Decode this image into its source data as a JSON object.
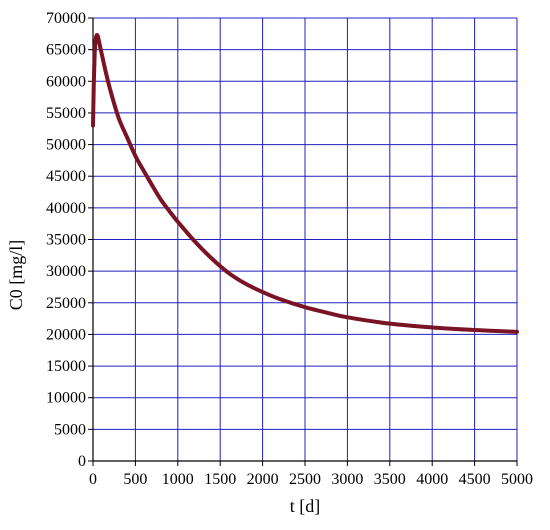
{
  "chart_data": {
    "type": "line",
    "title": "",
    "xlabel": "t [d]",
    "ylabel": "C0 [mg/l]",
    "xlim": [
      0,
      5000
    ],
    "ylim": [
      0,
      70000
    ],
    "x_ticks": [
      0,
      500,
      1000,
      1500,
      2000,
      2500,
      3000,
      3500,
      4000,
      4500,
      5000
    ],
    "y_ticks": [
      0,
      5000,
      10000,
      15000,
      20000,
      25000,
      30000,
      35000,
      40000,
      45000,
      50000,
      55000,
      60000,
      65000,
      70000
    ],
    "grid": true,
    "legend": "none",
    "colors": {
      "grid": "#2020c0",
      "series": "#7a1424",
      "axis": "#000000"
    },
    "series": [
      {
        "x": [
          0,
          10,
          20,
          30,
          40,
          50,
          60,
          75,
          100,
          150,
          200,
          300,
          400,
          500,
          600,
          700,
          800,
          900,
          1000,
          1200,
          1400,
          1600,
          1800,
          2000,
          2200,
          2500,
          2800,
          3000,
          3500,
          4000,
          4500,
          5000
        ],
        "y": [
          53000,
          60000,
          64500,
          66500,
          67200,
          67300,
          67000,
          66000,
          64500,
          61500,
          58800,
          54300,
          51200,
          48200,
          45800,
          43500,
          41300,
          39500,
          37800,
          34700,
          32000,
          29700,
          28000,
          26700,
          25600,
          24300,
          23300,
          22700,
          21700,
          21100,
          20700,
          20400
        ]
      }
    ]
  }
}
